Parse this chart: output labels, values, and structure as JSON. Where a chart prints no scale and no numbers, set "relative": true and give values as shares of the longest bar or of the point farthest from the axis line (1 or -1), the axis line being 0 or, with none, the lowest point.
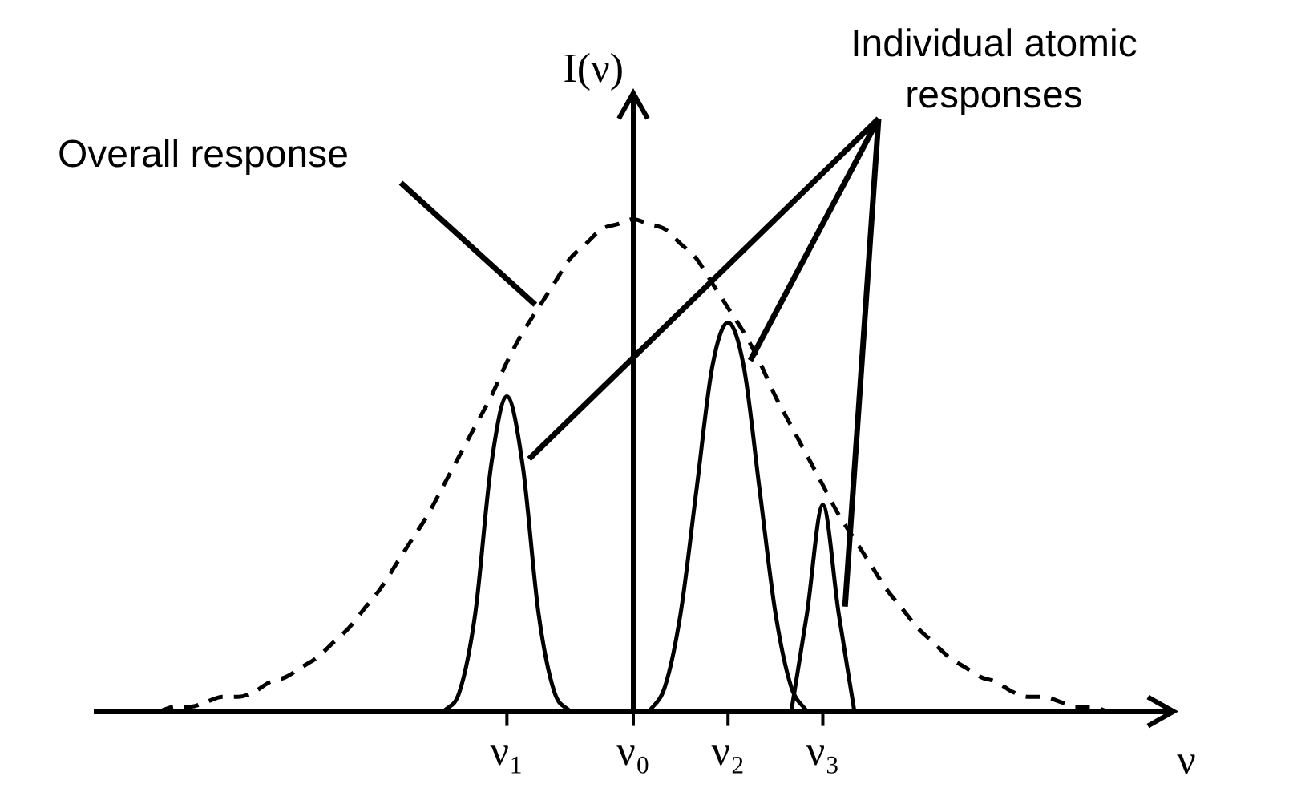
{
  "chart_data": {
    "type": "line",
    "relative": true,
    "xlabel": "ν",
    "ylabel": "I(ν)",
    "annotations": [
      "Overall response",
      "Individual atomic responses"
    ],
    "categories": [
      null,
      null,
      null,
      null,
      null,
      null,
      null,
      null,
      null,
      null,
      null,
      null,
      null,
      null,
      null,
      null,
      null,
      null,
      null,
      null,
      null,
      null,
      null,
      null,
      null,
      null,
      "ν₁",
      null,
      null,
      null,
      null,
      null,
      null,
      null,
      "ν₀",
      null,
      null,
      null,
      null,
      null,
      "ν₂",
      null,
      null,
      null,
      null,
      null,
      "ν₃",
      null,
      null,
      null,
      null,
      null,
      null,
      null,
      null,
      null,
      null,
      null,
      null,
      null,
      null,
      null,
      null,
      null,
      null,
      null,
      null,
      null,
      null
    ],
    "grid": false,
    "legend": false,
    "marker": "none",
    "series": [
      {
        "color": "#000000",
        "line_style": "dashed",
        "values": [
          null,
          null,
          null,
          null,
          0,
          0.01,
          0.01,
          0.02,
          0.03,
          0.03,
          0.04,
          0.06,
          0.07,
          0.09,
          0.11,
          0.14,
          0.17,
          0.21,
          0.25,
          0.3,
          0.35,
          0.4,
          0.46,
          0.52,
          0.58,
          0.64,
          0.71,
          0.77,
          0.82,
          0.87,
          0.92,
          0.95,
          0.98,
          0.99,
          1,
          0.99,
          0.98,
          0.95,
          0.92,
          0.87,
          0.82,
          0.77,
          0.71,
          0.64,
          0.58,
          0.52,
          0.46,
          0.4,
          0.35,
          0.3,
          0.25,
          0.21,
          0.17,
          0.14,
          0.11,
          0.09,
          0.07,
          0.06,
          0.04,
          0.03,
          0.03,
          0.02,
          0.01,
          0.01,
          0,
          null,
          null,
          null,
          null
        ]
      },
      {
        "color": "#000000",
        "line_style": "solid",
        "values": [
          null,
          null,
          null,
          null,
          null,
          null,
          null,
          null,
          null,
          null,
          null,
          null,
          null,
          null,
          null,
          null,
          null,
          null,
          null,
          null,
          null,
          null,
          0,
          0.04,
          0.2,
          0.5,
          0.64,
          0.5,
          0.2,
          0.04,
          0,
          null,
          null,
          null,
          null,
          null,
          null,
          null,
          null,
          null,
          null,
          null,
          null,
          null,
          null,
          null,
          null,
          null,
          null,
          null,
          null,
          null,
          null,
          null,
          null,
          null,
          null,
          null,
          null,
          null,
          null,
          null,
          null,
          null,
          null,
          null,
          null,
          null,
          null
        ]
      },
      {
        "color": "#000000",
        "line_style": "solid",
        "values": [
          null,
          null,
          null,
          null,
          null,
          null,
          null,
          null,
          null,
          null,
          null,
          null,
          null,
          null,
          null,
          null,
          null,
          null,
          null,
          null,
          null,
          null,
          null,
          null,
          null,
          null,
          null,
          null,
          null,
          null,
          null,
          null,
          null,
          null,
          null,
          0,
          0.05,
          0.2,
          0.45,
          0.7,
          0.79,
          0.7,
          0.45,
          0.2,
          0.05,
          0,
          null,
          null,
          null,
          null,
          null,
          null,
          null,
          null,
          null,
          null,
          null,
          null,
          null,
          null,
          null,
          null,
          null,
          null,
          null,
          null,
          null,
          null,
          null
        ]
      },
      {
        "color": "#000000",
        "line_style": "solid",
        "values": [
          null,
          null,
          null,
          null,
          null,
          null,
          null,
          null,
          null,
          null,
          null,
          null,
          null,
          null,
          null,
          null,
          null,
          null,
          null,
          null,
          null,
          null,
          null,
          null,
          null,
          null,
          null,
          null,
          null,
          null,
          null,
          null,
          null,
          null,
          null,
          null,
          null,
          null,
          null,
          null,
          null,
          null,
          null,
          null,
          0,
          0.2,
          0.42,
          0.2,
          0,
          null,
          null,
          null,
          null,
          null,
          null,
          null,
          null,
          null,
          null,
          null,
          null,
          null,
          null,
          null,
          null,
          null,
          null,
          null,
          null
        ]
      }
    ]
  }
}
